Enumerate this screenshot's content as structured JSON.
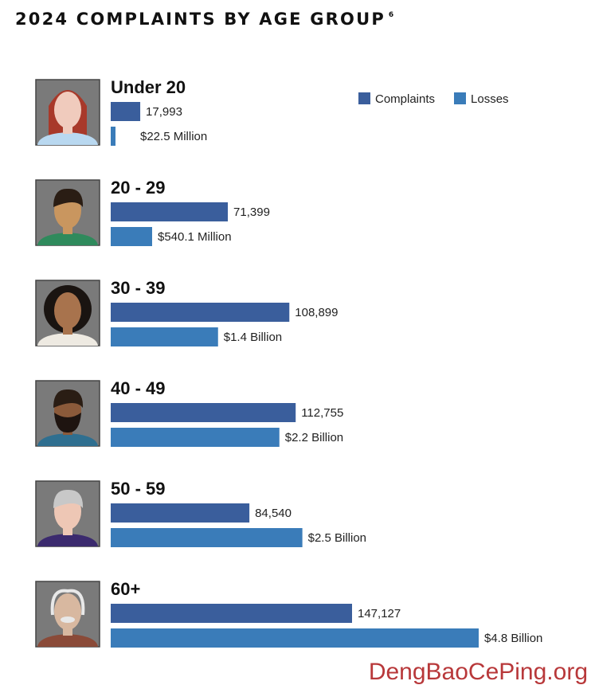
{
  "chart_data": {
    "type": "bar",
    "orientation": "horizontal",
    "title": "2024 COMPLAINTS BY AGE GROUP",
    "title_footnote": "6",
    "categories": [
      "Under 20",
      "20 - 29",
      "30 - 39",
      "40 - 49",
      "50 - 59",
      "60+"
    ],
    "series": [
      {
        "name": "Complaints",
        "color": "#3a5e9c",
        "values": [
          17993,
          71399,
          108899,
          112755,
          84540,
          147127
        ],
        "labels": [
          "17,993",
          "71,399",
          "108,899",
          "112,755",
          "84,540",
          "147,127"
        ]
      },
      {
        "name": "Losses",
        "color": "#3a7cb9",
        "values": [
          22500000,
          540100000,
          1400000000,
          2200000000,
          2500000000,
          4800000000
        ],
        "labels": [
          "$22.5 Million",
          "$540.1 Million",
          "$1.4 Billion",
          "$2.2 Billion",
          "$2.5 Billion",
          "$4.8 Billion"
        ]
      }
    ],
    "legend_position": "top-right",
    "grid": false,
    "axes_visible": false
  },
  "watermark": "DengBaoCePing.org"
}
